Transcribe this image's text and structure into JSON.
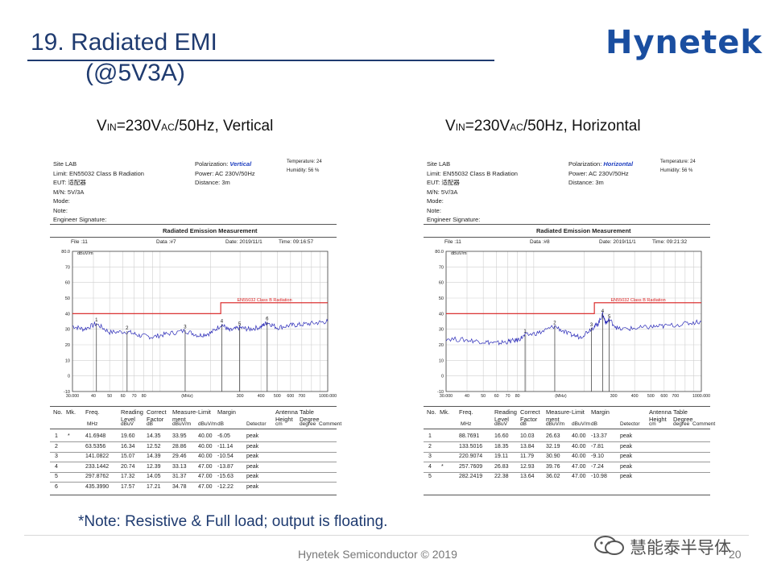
{
  "slide": {
    "title": "19. Radiated EMI",
    "subtitle": "(@5V3A)",
    "logo": "Hynetek",
    "note": "*Note: Resistive & Full load; output is floating.",
    "footer": "Hynetek Semiconductor © 2019",
    "page_number": "20",
    "watermark": "慧能泰半导体"
  },
  "panels": [
    {
      "heading": {
        "v": "V",
        "sub1": "IN",
        "mid": "=230V",
        "sub2": "AC",
        "tail": "/50Hz, Vertical"
      },
      "info": {
        "site": "Site  LAB",
        "limit": "Limit:  EN55032 Class B Radiation",
        "eut": "EUT:  适配器",
        "mn": "M/N:   5V/3A",
        "mode": "Mode:",
        "note": "Note:",
        "engineer": "Engineer Signature:",
        "polarization_label": "Polarization:",
        "polarization": "Vertical",
        "power": "Power:      AC 230V/50Hz",
        "distance": "Distance:   3m",
        "temperature": "Temperature:        24",
        "humidity": "Humidity:           56 %"
      },
      "meas_title": "Radiated Emission Measurement",
      "file": "File :11",
      "data_no": "Data :#7",
      "date": "Date: 2019/11/1",
      "time": "Time: 09:16:57",
      "table": {
        "headers": [
          "No.",
          "Mk.",
          "Freq.",
          "Reading Level",
          "Correct Factor",
          "Measure-ment",
          "Limit",
          "Margin",
          "",
          "Antenna Height",
          "Table Degree",
          ""
        ],
        "units": [
          "",
          "",
          "MHz",
          "dBuV",
          "dB",
          "dBuV/m",
          "dBuV/m",
          "dB",
          "Detector",
          "cm",
          "degree",
          "Comment"
        ],
        "rows": [
          [
            "1",
            "*",
            "41.6948",
            "19.60",
            "14.35",
            "33.95",
            "40.00",
            "-6.05",
            "peak"
          ],
          [
            "2",
            "",
            "63.5356",
            "16.34",
            "12.52",
            "28.86",
            "40.00",
            "-11.14",
            "peak"
          ],
          [
            "3",
            "",
            "141.0822",
            "15.07",
            "14.39",
            "29.46",
            "40.00",
            "-10.54",
            "peak"
          ],
          [
            "4",
            "",
            "233.1442",
            "20.74",
            "12.39",
            "33.13",
            "47.00",
            "-13.87",
            "peak"
          ],
          [
            "5",
            "",
            "297.8762",
            "17.32",
            "14.05",
            "31.37",
            "47.00",
            "-15.63",
            "peak"
          ],
          [
            "6",
            "",
            "435.3990",
            "17.57",
            "17.21",
            "34.78",
            "47.00",
            "-12.22",
            "peak"
          ]
        ]
      }
    },
    {
      "heading": {
        "v": "V",
        "sub1": "IN",
        "mid": "=230V",
        "sub2": "AC",
        "tail": "/50Hz, Horizontal"
      },
      "info": {
        "site": "Site  LAB",
        "limit": "Limit:  EN55032 Class B Radiation",
        "eut": "EUT:  适配器",
        "mn": "M/N:   5V/3A",
        "mode": "Mode:",
        "note": "Note:",
        "engineer": "Engineer Signature:",
        "polarization_label": "Polarization:",
        "polarization": "Horizontal",
        "power": "Power:      AC 230V/50Hz",
        "distance": "Distance:   3m",
        "temperature": "Temperature:        24",
        "humidity": "Humidity:           56 %"
      },
      "meas_title": "Radiated Emission Measurement",
      "file": "File :11",
      "data_no": "Data :#8",
      "date": "Date: 2019/11/1",
      "time": "Time: 09:21:32",
      "table": {
        "headers": [
          "No.",
          "Mk.",
          "Freq.",
          "Reading Level",
          "Correct Factor",
          "Measure-ment",
          "Limit",
          "Margin",
          "",
          "Antenna Height",
          "Table Degree",
          ""
        ],
        "units": [
          "",
          "",
          "MHz",
          "dBuV",
          "dB",
          "dBuV/m",
          "dBuV/m",
          "dB",
          "Detector",
          "cm",
          "degree",
          "Comment"
        ],
        "rows": [
          [
            "1",
            "",
            "88.7691",
            "16.60",
            "10.03",
            "26.63",
            "40.00",
            "-13.37",
            "peak"
          ],
          [
            "2",
            "",
            "133.5016",
            "18.35",
            "13.84",
            "32.19",
            "40.00",
            "-7.81",
            "peak"
          ],
          [
            "3",
            "",
            "220.9074",
            "19.11",
            "11.79",
            "30.90",
            "40.00",
            "-9.10",
            "peak"
          ],
          [
            "4",
            "*",
            "257.7609",
            "26.83",
            "12.93",
            "39.76",
            "47.00",
            "-7.24",
            "peak"
          ],
          [
            "5",
            "",
            "282.2419",
            "22.38",
            "13.64",
            "36.02",
            "47.00",
            "-10.98",
            "peak"
          ]
        ]
      }
    }
  ],
  "chart_data": [
    {
      "type": "line",
      "ylabel": "dBuV/m",
      "xlabel": "(MHz)",
      "x_scale": "log",
      "xlim": [
        30,
        1000
      ],
      "ylim": [
        -10,
        80
      ],
      "x_ticks": [
        "30.000",
        "40",
        "50",
        "60",
        "70",
        "80",
        "(MHz)",
        "300",
        "400",
        "500",
        "600",
        "700",
        "1000.000"
      ],
      "y_ticks": [
        "80.0",
        "70",
        "60",
        "50",
        "40",
        "30",
        "20",
        "10",
        "0",
        "-10"
      ],
      "limit_label": "EN55032 Class B Radiation",
      "limit_segments": [
        {
          "x": [
            30,
            230
          ],
          "y": 40
        },
        {
          "x": [
            230,
            1000
          ],
          "y": 47
        }
      ],
      "markers": [
        {
          "label": "1",
          "x": 41.6948,
          "y": 33.95
        },
        {
          "label": "2",
          "x": 63.5356,
          "y": 28.86
        },
        {
          "label": "3",
          "x": 141.0822,
          "y": 29.46
        },
        {
          "label": "4",
          "x": 233.1442,
          "y": 33.13
        },
        {
          "label": "5",
          "x": 297.8762,
          "y": 31.37
        },
        {
          "label": "6",
          "x": 435.399,
          "y": 34.78
        }
      ],
      "trace": [
        [
          30,
          32
        ],
        [
          35,
          30
        ],
        [
          41.7,
          33.5
        ],
        [
          50,
          28
        ],
        [
          63.5,
          28.5
        ],
        [
          75,
          26
        ],
        [
          90,
          25
        ],
        [
          110,
          27
        ],
        [
          141,
          29
        ],
        [
          170,
          26
        ],
        [
          200,
          27.5
        ],
        [
          233,
          33
        ],
        [
          260,
          29
        ],
        [
          298,
          31
        ],
        [
          340,
          30
        ],
        [
          400,
          31.5
        ],
        [
          435,
          34.5
        ],
        [
          500,
          31
        ],
        [
          600,
          32.5
        ],
        [
          700,
          33
        ],
        [
          850,
          34
        ],
        [
          1000,
          35
        ]
      ]
    },
    {
      "type": "line",
      "ylabel": "dBuV/m",
      "xlabel": "(MHz)",
      "x_scale": "log",
      "xlim": [
        30,
        1000
      ],
      "ylim": [
        -10,
        80
      ],
      "x_ticks": [
        "30.000",
        "40",
        "50",
        "60",
        "70",
        "80",
        "(MHz)",
        "300",
        "400",
        "500",
        "600",
        "700",
        "1000.000"
      ],
      "y_ticks": [
        "80.0",
        "70",
        "60",
        "50",
        "40",
        "30",
        "20",
        "10",
        "0",
        "-10"
      ],
      "limit_label": "EN55032 Class B Radiation",
      "limit_segments": [
        {
          "x": [
            30,
            230
          ],
          "y": 40
        },
        {
          "x": [
            230,
            1000
          ],
          "y": 47
        }
      ],
      "markers": [
        {
          "label": "1",
          "x": 88.7691,
          "y": 26.63
        },
        {
          "label": "2",
          "x": 133.5016,
          "y": 32.19
        },
        {
          "label": "3",
          "x": 220.9074,
          "y": 30.9
        },
        {
          "label": "4",
          "x": 257.7609,
          "y": 39.76
        },
        {
          "label": "5",
          "x": 282.2419,
          "y": 36.02
        }
      ],
      "trace": [
        [
          30,
          24
        ],
        [
          40,
          23
        ],
        [
          50,
          22
        ],
        [
          60,
          21
        ],
        [
          70,
          22
        ],
        [
          80,
          23
        ],
        [
          88.8,
          26
        ],
        [
          110,
          28
        ],
        [
          133.5,
          32
        ],
        [
          160,
          27
        ],
        [
          190,
          25
        ],
        [
          220.9,
          30.5
        ],
        [
          240,
          33
        ],
        [
          257.8,
          39.5
        ],
        [
          270,
          34
        ],
        [
          282.2,
          36
        ],
        [
          320,
          30
        ],
        [
          400,
          30.5
        ],
        [
          500,
          31.5
        ],
        [
          600,
          32
        ],
        [
          800,
          33.5
        ],
        [
          1000,
          35
        ]
      ]
    }
  ]
}
